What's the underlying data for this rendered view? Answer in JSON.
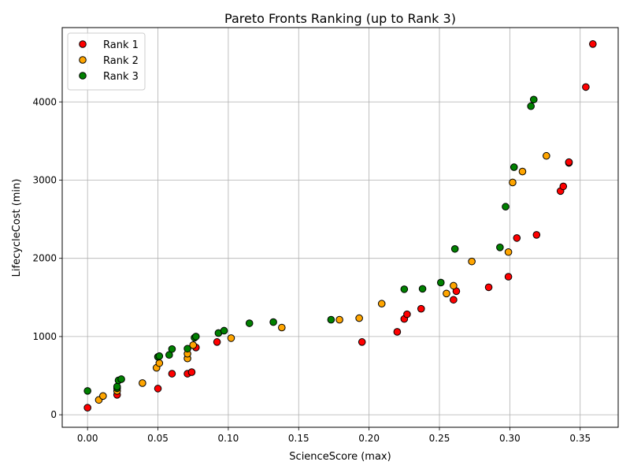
{
  "chart_data": {
    "type": "scatter",
    "title": "Pareto Fronts Ranking (up to Rank 3)",
    "xlabel": "ScienceScore (max)",
    "ylabel": "LifecycleCost (min)",
    "xlim": [
      -0.018,
      0.377
    ],
    "ylim": [
      -160,
      4950
    ],
    "xticks": [
      0.0,
      0.05,
      0.1,
      0.15,
      0.2,
      0.25,
      0.3,
      0.35
    ],
    "xtick_labels": [
      "0.00",
      "0.05",
      "0.10",
      "0.15",
      "0.20",
      "0.25",
      "0.30",
      "0.35"
    ],
    "yticks": [
      0,
      1000,
      2000,
      3000,
      4000
    ],
    "ytick_labels": [
      "0",
      "1000",
      "2000",
      "3000",
      "4000"
    ],
    "grid": true,
    "legend_position": "top-left",
    "series": [
      {
        "name": "Rank 1",
        "color": "#ff0000",
        "points": [
          [
            0.0,
            90
          ],
          [
            0.021,
            255
          ],
          [
            0.05,
            335
          ],
          [
            0.06,
            525
          ],
          [
            0.071,
            525
          ],
          [
            0.074,
            545
          ],
          [
            0.077,
            860
          ],
          [
            0.092,
            930
          ],
          [
            0.195,
            930
          ],
          [
            0.22,
            1060
          ],
          [
            0.225,
            1225
          ],
          [
            0.227,
            1285
          ],
          [
            0.237,
            1355
          ],
          [
            0.26,
            1470
          ],
          [
            0.262,
            1580
          ],
          [
            0.285,
            1630
          ],
          [
            0.299,
            1765
          ],
          [
            0.305,
            2260
          ],
          [
            0.319,
            2300
          ],
          [
            0.336,
            2860
          ],
          [
            0.338,
            2920
          ],
          [
            0.342,
            3220
          ],
          [
            0.342,
            3230
          ],
          [
            0.354,
            4190
          ],
          [
            0.359,
            4740
          ]
        ]
      },
      {
        "name": "Rank 2",
        "color": "#ffa500",
        "points": [
          [
            0.008,
            190
          ],
          [
            0.011,
            240
          ],
          [
            0.021,
            305
          ],
          [
            0.039,
            405
          ],
          [
            0.049,
            600
          ],
          [
            0.051,
            660
          ],
          [
            0.071,
            720
          ],
          [
            0.071,
            780
          ],
          [
            0.075,
            890
          ],
          [
            0.102,
            980
          ],
          [
            0.138,
            1115
          ],
          [
            0.179,
            1215
          ],
          [
            0.193,
            1235
          ],
          [
            0.209,
            1420
          ],
          [
            0.255,
            1550
          ],
          [
            0.26,
            1650
          ],
          [
            0.273,
            1960
          ],
          [
            0.299,
            2080
          ],
          [
            0.302,
            2970
          ],
          [
            0.309,
            3110
          ],
          [
            0.326,
            3310
          ]
        ]
      },
      {
        "name": "Rank 3",
        "color": "#008000",
        "points": [
          [
            0.0,
            305
          ],
          [
            0.021,
            340
          ],
          [
            0.021,
            360
          ],
          [
            0.022,
            440
          ],
          [
            0.024,
            455
          ],
          [
            0.05,
            740
          ],
          [
            0.051,
            750
          ],
          [
            0.058,
            765
          ],
          [
            0.06,
            840
          ],
          [
            0.071,
            845
          ],
          [
            0.076,
            985
          ],
          [
            0.077,
            1000
          ],
          [
            0.093,
            1045
          ],
          [
            0.097,
            1075
          ],
          [
            0.115,
            1170
          ],
          [
            0.132,
            1185
          ],
          [
            0.173,
            1215
          ],
          [
            0.225,
            1605
          ],
          [
            0.238,
            1610
          ],
          [
            0.251,
            1690
          ],
          [
            0.261,
            2120
          ],
          [
            0.293,
            2140
          ],
          [
            0.297,
            2660
          ],
          [
            0.303,
            3165
          ],
          [
            0.315,
            3945
          ],
          [
            0.317,
            4030
          ]
        ]
      }
    ]
  }
}
